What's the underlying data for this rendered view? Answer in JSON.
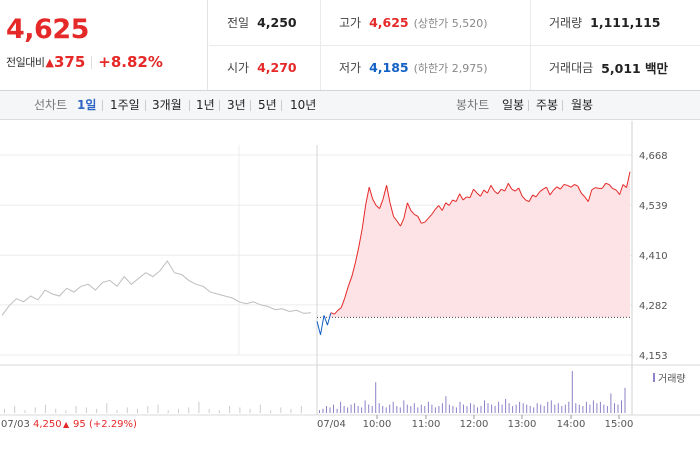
{
  "summary": {
    "price": "4,625",
    "change_label": "전일대비",
    "change_arrow": "▲",
    "change_value": "375",
    "change_pct": "+8.82%",
    "stats": {
      "prev_close_label": "전일",
      "prev_close": "4,250",
      "open_label": "시가",
      "open": "4,270",
      "high_label": "고가",
      "high": "4,625",
      "upper_limit": "(상한가 5,520)",
      "low_label": "저가",
      "low": "4,185",
      "lower_limit": "(하한가 2,975)",
      "volume_label": "거래량",
      "volume": "1,111,115",
      "amount_label": "거래대금",
      "amount": "5,011 백만"
    }
  },
  "toolbar": {
    "line_label": "선차트",
    "periods": [
      "1일",
      "1주일",
      "3개월",
      "1년",
      "3년",
      "5년",
      "10년"
    ],
    "active_period": "1일",
    "candle_label": "봉차트",
    "candles": [
      "일봉",
      "주봉",
      "월봉"
    ]
  },
  "chart_data": {
    "type": "line",
    "y_ticks": [
      "4,668",
      "4,539",
      "4,410",
      "4,282",
      "4,153"
    ],
    "ylim": [
      4153,
      4668
    ],
    "prev_close": 4250,
    "prev_day_label": "07/03",
    "prev_day_close": "4,250",
    "prev_day_arrow": "▲",
    "prev_day_change": "95",
    "prev_day_pct": "(+2.29%)",
    "today_label": "07/04",
    "x_ticks": [
      "10:00",
      "11:00",
      "12:00",
      "13:00",
      "14:00",
      "15:00"
    ],
    "volume_legend": "거래량",
    "colors": {
      "up": "#e52828",
      "down": "#1261c4",
      "prev_day": "#bdbdbd",
      "volume_prev": "#cccccc",
      "volume_today": "#8e82c8"
    },
    "prev_day_series": [
      4255,
      4280,
      4298,
      4290,
      4305,
      4295,
      4320,
      4310,
      4305,
      4325,
      4315,
      4330,
      4335,
      4320,
      4340,
      4345,
      4330,
      4355,
      4335,
      4350,
      4365,
      4355,
      4370,
      4395,
      4365,
      4360,
      4345,
      4335,
      4330,
      4315,
      4310,
      4305,
      4300,
      4290,
      4285,
      4290,
      4282,
      4278,
      4270,
      4272,
      4265,
      4268,
      4260,
      4262
    ],
    "today_series": [
      4240,
      4205,
      4255,
      4230,
      4262,
      4258,
      4268,
      4275,
      4300,
      4330,
      4355,
      4390,
      4430,
      4478,
      4540,
      4585,
      4555,
      4538,
      4530,
      4555,
      4590,
      4545,
      4510,
      4498,
      4485,
      4505,
      4545,
      4525,
      4515,
      4510,
      4492,
      4495,
      4505,
      4515,
      4528,
      4538,
      4525,
      4545,
      4538,
      4552,
      4548,
      4568,
      4552,
      4560,
      4558,
      4580,
      4570,
      4562,
      4578,
      4570,
      4590,
      4575,
      4568,
      4580,
      4575,
      4595,
      4580,
      4575,
      4583,
      4562,
      4552,
      4548,
      4565,
      4560,
      4573,
      4580,
      4585,
      4565,
      4578,
      4586,
      4580,
      4592,
      4590,
      4585,
      4592,
      4588,
      4570,
      4560,
      4548,
      4578,
      4584,
      4582,
      4582,
      4595,
      4592,
      4582,
      4578,
      4566,
      4592,
      4584,
      4625
    ],
    "prev_day_volume": [
      3,
      5,
      2,
      4,
      6,
      3,
      2,
      5,
      4,
      3,
      7,
      2,
      4,
      3,
      5,
      6,
      2,
      3,
      4,
      8,
      3,
      2,
      5,
      4,
      3,
      6,
      2,
      4,
      3,
      5
    ],
    "today_volume": [
      2,
      3,
      5,
      4,
      6,
      3,
      8,
      5,
      4,
      6,
      7,
      5,
      4,
      9,
      6,
      5,
      22,
      7,
      5,
      4,
      6,
      8,
      5,
      4,
      9,
      6,
      5,
      7,
      4,
      6,
      5,
      8,
      6,
      4,
      5,
      7,
      12,
      6,
      5,
      4,
      8,
      6,
      5,
      7,
      6,
      4,
      5,
      9,
      7,
      6,
      5,
      8,
      6,
      10,
      7,
      5,
      6,
      8,
      7,
      6,
      5,
      4,
      7,
      6,
      5,
      8,
      9,
      6,
      7,
      5,
      6,
      8,
      30,
      7,
      6,
      5,
      8,
      6,
      9,
      7,
      8,
      6,
      5,
      14,
      7,
      6,
      9,
      18
    ]
  }
}
